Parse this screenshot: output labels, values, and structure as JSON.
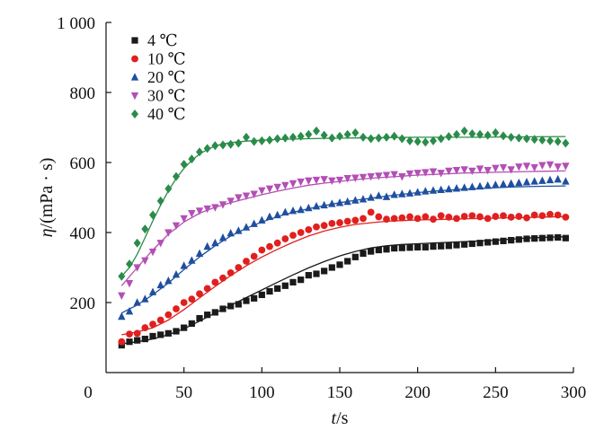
{
  "chart_data": {
    "type": "scatter",
    "title": "",
    "xlabel": "t/s",
    "ylabel": "η/(mPa · s)",
    "x_var": "t",
    "x_unit": "/s",
    "y_var": "η",
    "y_unit": "/(mPa · s)",
    "xlim": [
      0,
      300
    ],
    "ylim": [
      0,
      1000
    ],
    "xticks": [
      0,
      50,
      100,
      150,
      200,
      250,
      300
    ],
    "xtick_labels": [
      "0",
      "50",
      "100",
      "150",
      "200",
      "250",
      "300"
    ],
    "yticks": [
      200,
      400,
      600,
      800,
      1000
    ],
    "ytick_labels": [
      "200",
      "400",
      "600",
      "800",
      "1 000"
    ],
    "grid": false,
    "legend_position": "top-left",
    "series": [
      {
        "name": "4 ℃",
        "marker": "square",
        "color": "#1a1a1a",
        "x": [
          10,
          15,
          20,
          25,
          30,
          35,
          40,
          45,
          50,
          55,
          60,
          65,
          70,
          75,
          80,
          85,
          90,
          95,
          100,
          105,
          110,
          115,
          120,
          125,
          130,
          135,
          140,
          145,
          150,
          155,
          160,
          165,
          170,
          175,
          180,
          185,
          190,
          195,
          200,
          205,
          210,
          215,
          220,
          225,
          230,
          235,
          240,
          245,
          250,
          255,
          260,
          265,
          270,
          275,
          280,
          285,
          290,
          295
        ],
        "y": [
          78,
          88,
          92,
          96,
          104,
          108,
          112,
          118,
          128,
          140,
          155,
          165,
          172,
          182,
          190,
          195,
          205,
          212,
          222,
          232,
          240,
          248,
          258,
          265,
          278,
          282,
          290,
          300,
          308,
          318,
          330,
          340,
          346,
          350,
          352,
          355,
          356,
          357,
          358,
          358,
          360,
          361,
          362,
          364,
          366,
          368,
          370,
          372,
          374,
          376,
          378,
          380,
          382,
          383,
          384,
          385,
          386,
          384
        ],
        "fit": [
          [
            10,
            82
          ],
          [
            20,
            88
          ],
          [
            30,
            96
          ],
          [
            40,
            108
          ],
          [
            50,
            125
          ],
          [
            60,
            147
          ],
          [
            70,
            170
          ],
          [
            80,
            192
          ],
          [
            90,
            214
          ],
          [
            100,
            236
          ],
          [
            110,
            258
          ],
          [
            120,
            279
          ],
          [
            130,
            299
          ],
          [
            140,
            317
          ],
          [
            150,
            333
          ],
          [
            160,
            346
          ],
          [
            170,
            356
          ],
          [
            180,
            362
          ],
          [
            190,
            366
          ],
          [
            200,
            368
          ],
          [
            210,
            370
          ],
          [
            220,
            372
          ],
          [
            230,
            374
          ],
          [
            240,
            376
          ],
          [
            250,
            378
          ],
          [
            260,
            381
          ],
          [
            270,
            384
          ],
          [
            280,
            386
          ],
          [
            295,
            388
          ]
        ]
      },
      {
        "name": "10 ℃",
        "marker": "circle",
        "color": "#e0201e",
        "x": [
          10,
          15,
          20,
          25,
          30,
          35,
          40,
          45,
          50,
          55,
          60,
          65,
          70,
          75,
          80,
          85,
          90,
          95,
          100,
          105,
          110,
          115,
          120,
          125,
          130,
          135,
          140,
          145,
          150,
          155,
          160,
          165,
          170,
          175,
          180,
          185,
          190,
          195,
          200,
          205,
          210,
          215,
          220,
          225,
          230,
          235,
          240,
          245,
          250,
          255,
          260,
          265,
          270,
          275,
          280,
          285,
          290,
          295
        ],
        "y": [
          88,
          110,
          112,
          128,
          138,
          150,
          165,
          182,
          200,
          210,
          225,
          240,
          258,
          270,
          285,
          300,
          318,
          332,
          350,
          360,
          370,
          382,
          392,
          400,
          408,
          416,
          420,
          426,
          428,
          432,
          435,
          440,
          458,
          445,
          438,
          440,
          442,
          445,
          440,
          445,
          438,
          448,
          444,
          440,
          446,
          448,
          445,
          440,
          446,
          448,
          444,
          446,
          442,
          450,
          448,
          452,
          450,
          444
        ],
        "fit": [
          [
            10,
            108
          ],
          [
            20,
            116
          ],
          [
            30,
            128
          ],
          [
            40,
            150
          ],
          [
            50,
            180
          ],
          [
            60,
            213
          ],
          [
            70,
            246
          ],
          [
            80,
            277
          ],
          [
            90,
            305
          ],
          [
            100,
            330
          ],
          [
            110,
            352
          ],
          [
            120,
            372
          ],
          [
            130,
            390
          ],
          [
            140,
            404
          ],
          [
            150,
            415
          ],
          [
            160,
            423
          ],
          [
            170,
            428
          ],
          [
            180,
            432
          ],
          [
            190,
            434
          ],
          [
            200,
            436
          ],
          [
            210,
            437
          ],
          [
            220,
            438
          ],
          [
            240,
            440
          ],
          [
            260,
            442
          ],
          [
            280,
            444
          ],
          [
            295,
            445
          ]
        ]
      },
      {
        "name": "20 ℃",
        "marker": "triangle-up",
        "color": "#1f4fa0",
        "x": [
          10,
          15,
          20,
          25,
          30,
          35,
          40,
          45,
          50,
          55,
          60,
          65,
          70,
          75,
          80,
          85,
          90,
          95,
          100,
          105,
          110,
          115,
          120,
          125,
          130,
          135,
          140,
          145,
          150,
          155,
          160,
          165,
          170,
          175,
          180,
          185,
          190,
          195,
          200,
          205,
          210,
          215,
          220,
          225,
          230,
          235,
          240,
          245,
          250,
          255,
          260,
          265,
          270,
          275,
          280,
          285,
          290,
          295
        ],
        "y": [
          160,
          175,
          200,
          210,
          230,
          250,
          262,
          280,
          305,
          320,
          340,
          360,
          370,
          385,
          398,
          405,
          415,
          425,
          435,
          445,
          450,
          458,
          462,
          465,
          470,
          475,
          478,
          482,
          485,
          488,
          492,
          495,
          500,
          505,
          502,
          508,
          510,
          512,
          515,
          518,
          520,
          522,
          524,
          526,
          528,
          530,
          532,
          534,
          536,
          538,
          540,
          542,
          544,
          546,
          548,
          550,
          552,
          546
        ],
        "fit": [
          [
            10,
            170
          ],
          [
            20,
            193
          ],
          [
            30,
            222
          ],
          [
            40,
            256
          ],
          [
            50,
            294
          ],
          [
            60,
            330
          ],
          [
            70,
            362
          ],
          [
            80,
            390
          ],
          [
            90,
            412
          ],
          [
            100,
            430
          ],
          [
            110,
            445
          ],
          [
            120,
            458
          ],
          [
            130,
            468
          ],
          [
            140,
            477
          ],
          [
            150,
            485
          ],
          [
            160,
            492
          ],
          [
            170,
            498
          ],
          [
            180,
            504
          ],
          [
            190,
            509
          ],
          [
            200,
            514
          ],
          [
            210,
            518
          ],
          [
            220,
            521
          ],
          [
            230,
            524
          ],
          [
            240,
            526
          ],
          [
            250,
            528
          ],
          [
            260,
            530
          ],
          [
            270,
            531
          ],
          [
            280,
            532
          ],
          [
            295,
            533
          ]
        ]
      },
      {
        "name": "30 ℃",
        "marker": "triangle-down",
        "color": "#b34fb5",
        "x": [
          10,
          15,
          20,
          25,
          30,
          35,
          40,
          45,
          50,
          55,
          60,
          65,
          70,
          75,
          80,
          85,
          90,
          95,
          100,
          105,
          110,
          115,
          120,
          125,
          130,
          135,
          140,
          145,
          150,
          155,
          160,
          165,
          170,
          175,
          180,
          185,
          190,
          195,
          200,
          205,
          210,
          215,
          220,
          225,
          230,
          235,
          240,
          245,
          250,
          255,
          260,
          265,
          270,
          275,
          280,
          285,
          290,
          295
        ],
        "y": [
          220,
          255,
          300,
          320,
          345,
          370,
          400,
          420,
          440,
          455,
          462,
          468,
          472,
          480,
          490,
          500,
          505,
          510,
          520,
          525,
          530,
          535,
          540,
          545,
          548,
          550,
          552,
          548,
          550,
          555,
          556,
          558,
          560,
          562,
          564,
          566,
          560,
          568,
          570,
          572,
          574,
          570,
          576,
          578,
          580,
          576,
          582,
          578,
          584,
          586,
          580,
          588,
          590,
          586,
          592,
          594,
          588,
          590
        ],
        "fit": [
          [
            10,
            248
          ],
          [
            20,
            300
          ],
          [
            30,
            350
          ],
          [
            40,
            395
          ],
          [
            50,
            430
          ],
          [
            60,
            455
          ],
          [
            70,
            472
          ],
          [
            80,
            485
          ],
          [
            90,
            497
          ],
          [
            100,
            508
          ],
          [
            110,
            518
          ],
          [
            120,
            527
          ],
          [
            130,
            535
          ],
          [
            140,
            541
          ],
          [
            150,
            546
          ],
          [
            160,
            551
          ],
          [
            170,
            555
          ],
          [
            180,
            558
          ],
          [
            190,
            561
          ],
          [
            200,
            564
          ],
          [
            210,
            566
          ],
          [
            220,
            568
          ],
          [
            230,
            570
          ],
          [
            240,
            571
          ],
          [
            250,
            572
          ],
          [
            260,
            573
          ],
          [
            270,
            574
          ],
          [
            280,
            575
          ],
          [
            295,
            576
          ]
        ]
      },
      {
        "name": "40 ℃",
        "marker": "diamond",
        "color": "#2a8c4a",
        "x": [
          10,
          15,
          20,
          25,
          30,
          35,
          40,
          45,
          50,
          55,
          60,
          65,
          70,
          75,
          80,
          85,
          90,
          95,
          100,
          105,
          110,
          115,
          120,
          125,
          130,
          135,
          140,
          145,
          150,
          155,
          160,
          165,
          170,
          175,
          180,
          185,
          190,
          195,
          200,
          205,
          210,
          215,
          220,
          225,
          230,
          235,
          240,
          245,
          250,
          255,
          260,
          265,
          270,
          275,
          280,
          285,
          290,
          295
        ],
        "y": [
          275,
          310,
          370,
          410,
          450,
          490,
          525,
          560,
          595,
          610,
          630,
          640,
          648,
          650,
          652,
          655,
          672,
          660,
          662,
          664,
          668,
          670,
          672,
          675,
          680,
          690,
          678,
          670,
          675,
          680,
          685,
          672,
          668,
          670,
          672,
          675,
          668,
          662,
          660,
          658,
          662,
          668,
          674,
          680,
          690,
          682,
          680,
          678,
          685,
          676,
          672,
          670,
          668,
          666,
          664,
          662,
          660,
          655
        ],
        "fit": [
          [
            10,
            275
          ],
          [
            15,
            300
          ],
          [
            20,
            338
          ],
          [
            25,
            385
          ],
          [
            30,
            433
          ],
          [
            35,
            478
          ],
          [
            40,
            519
          ],
          [
            45,
            554
          ],
          [
            50,
            583
          ],
          [
            55,
            606
          ],
          [
            60,
            624
          ],
          [
            65,
            637
          ],
          [
            70,
            647
          ],
          [
            75,
            653
          ],
          [
            80,
            657
          ],
          [
            90,
            661
          ],
          [
            100,
            664
          ],
          [
            120,
            667
          ],
          [
            140,
            669
          ],
          [
            160,
            670
          ],
          [
            180,
            671
          ],
          [
            200,
            672
          ],
          [
            220,
            672
          ],
          [
            240,
            672
          ],
          [
            260,
            673
          ],
          [
            295,
            674
          ]
        ]
      }
    ]
  }
}
